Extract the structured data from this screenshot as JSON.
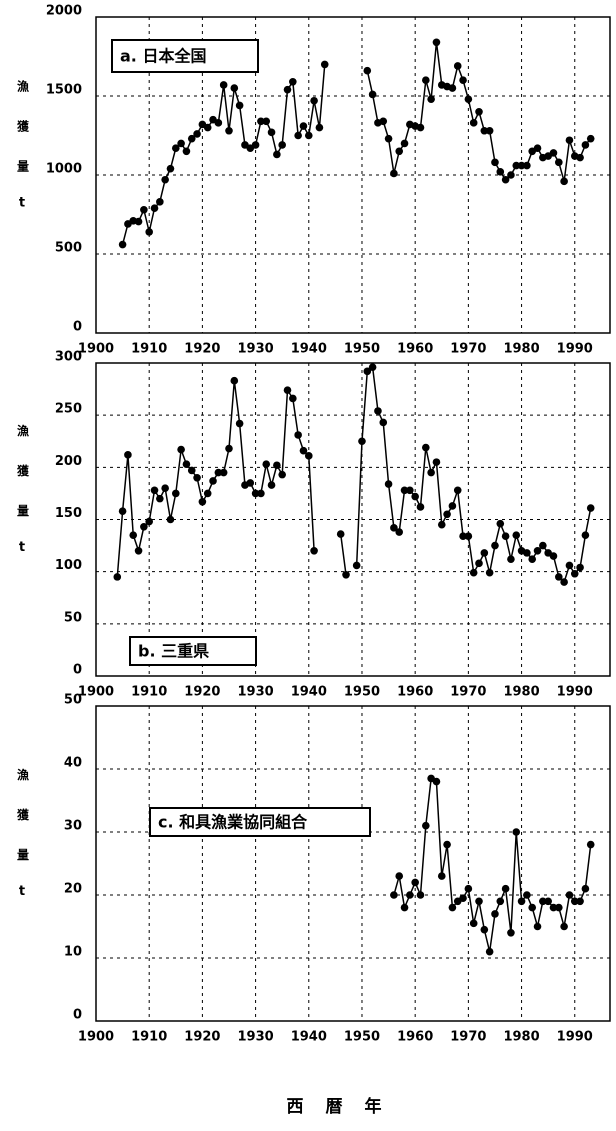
{
  "chart_data": [
    {
      "type": "line",
      "label": "a. 日本全国",
      "y_label": "漁獲量",
      "y_unit": "t",
      "color": "#000000",
      "x": [
        1905,
        1906,
        1907,
        1908,
        1909,
        1910,
        1911,
        1912,
        1913,
        1914,
        1915,
        1916,
        1917,
        1918,
        1919,
        1920,
        1921,
        1922,
        1923,
        1924,
        1925,
        1926,
        1927,
        1928,
        1929,
        1930,
        1931,
        1932,
        1933,
        1934,
        1935,
        1936,
        1937,
        1938,
        1939,
        1940,
        1941,
        1942,
        1943,
        1944,
        1945,
        1946,
        1947,
        1948,
        1949,
        1950,
        1951,
        1952,
        1953,
        1954,
        1955,
        1956,
        1957,
        1958,
        1959,
        1960,
        1961,
        1962,
        1963,
        1964,
        1965,
        1966,
        1967,
        1968,
        1969,
        1970,
        1971,
        1972,
        1973,
        1974,
        1975,
        1976,
        1977,
        1978,
        1979,
        1980,
        1981,
        1982,
        1983,
        1984,
        1985,
        1986,
        1987,
        1988,
        1989,
        1990,
        1991,
        1992,
        1993
      ],
      "values": [
        560,
        690,
        710,
        705,
        780,
        640,
        790,
        830,
        970,
        1040,
        1170,
        1200,
        1150,
        1230,
        1260,
        1320,
        1300,
        1350,
        1330,
        1570,
        1280,
        1550,
        1440,
        1190,
        1170,
        1190,
        1340,
        1340,
        1270,
        1130,
        1190,
        1540,
        1590,
        1250,
        1310,
        1250,
        1470,
        1300,
        1700,
        null,
        null,
        null,
        null,
        null,
        null,
        null,
        1660,
        1510,
        1330,
        1340,
        1230,
        1010,
        1150,
        1200,
        1320,
        1310,
        1300,
        1600,
        1480,
        1840,
        1570,
        1560,
        1550,
        1690,
        1600,
        1480,
        1330,
        1400,
        1280,
        1280,
        1080,
        1020,
        970,
        1000,
        1060,
        1060,
        1060,
        1150,
        1170,
        1110,
        1120,
        1140,
        1080,
        960,
        1220,
        1120,
        1110,
        1190,
        1230
      ],
      "xlim": [
        1900,
        1997
      ],
      "xticks": [
        1900,
        1910,
        1920,
        1930,
        1940,
        1950,
        1960,
        1970,
        1980,
        1990
      ],
      "ylim": [
        0,
        2000
      ],
      "yticks": [
        0,
        500,
        1000,
        1500,
        2000
      ],
      "grid": true
    },
    {
      "type": "line",
      "label": "b. 三重県",
      "y_label": "漁獲量",
      "y_unit": "t",
      "color": "#000000",
      "x": [
        1904,
        1905,
        1906,
        1907,
        1908,
        1909,
        1910,
        1911,
        1912,
        1913,
        1914,
        1915,
        1916,
        1917,
        1918,
        1919,
        1920,
        1921,
        1922,
        1923,
        1924,
        1925,
        1926,
        1927,
        1928,
        1929,
        1930,
        1931,
        1932,
        1933,
        1934,
        1935,
        1936,
        1937,
        1938,
        1939,
        1940,
        1941,
        1942,
        1943,
        1944,
        1945,
        1946,
        1947,
        1948,
        1949,
        1950,
        1951,
        1952,
        1953,
        1954,
        1955,
        1956,
        1957,
        1958,
        1959,
        1960,
        1961,
        1962,
        1963,
        1964,
        1965,
        1966,
        1967,
        1968,
        1969,
        1970,
        1971,
        1972,
        1973,
        1974,
        1975,
        1976,
        1977,
        1978,
        1979,
        1980,
        1981,
        1982,
        1983,
        1984,
        1985,
        1986,
        1987,
        1988,
        1989,
        1990,
        1991,
        1992,
        1993
      ],
      "values": [
        95,
        158,
        212,
        135,
        120,
        143,
        148,
        178,
        170,
        180,
        150,
        175,
        217,
        203,
        197,
        190,
        167,
        175,
        187,
        195,
        195,
        218,
        283,
        242,
        183,
        185,
        175,
        175,
        203,
        183,
        202,
        193,
        274,
        266,
        231,
        216,
        211,
        120,
        null,
        null,
        null,
        null,
        136,
        97,
        null,
        106,
        225,
        292,
        296,
        254,
        243,
        184,
        142,
        138,
        178,
        178,
        172,
        162,
        219,
        195,
        205,
        145,
        155,
        163,
        178,
        134,
        134,
        99,
        108,
        118,
        99,
        125,
        146,
        134,
        112,
        135,
        120,
        118,
        112,
        120,
        125,
        118,
        115,
        95,
        90,
        106,
        98,
        104,
        135,
        161
      ],
      "xlim": [
        1900,
        1997
      ],
      "xticks": [
        1900,
        1910,
        1920,
        1930,
        1940,
        1950,
        1960,
        1970,
        1980,
        1990
      ],
      "ylim": [
        0,
        300
      ],
      "yticks": [
        0,
        50,
        100,
        150,
        200,
        250,
        300
      ],
      "grid": true
    },
    {
      "type": "line",
      "label": "c. 和具漁業協同組合",
      "y_label": "漁獲量",
      "y_unit": "t",
      "xlabel": "西暦年",
      "color": "#000000",
      "x": [
        1956,
        1957,
        1958,
        1959,
        1960,
        1961,
        1962,
        1963,
        1964,
        1965,
        1966,
        1967,
        1968,
        1969,
        1970,
        1971,
        1972,
        1973,
        1974,
        1975,
        1976,
        1977,
        1978,
        1979,
        1980,
        1981,
        1982,
        1983,
        1984,
        1985,
        1986,
        1987,
        1988,
        1989,
        1990,
        1991,
        1992,
        1993
      ],
      "values": [
        20,
        23,
        18,
        20,
        22,
        20,
        31,
        38.5,
        38,
        23,
        28,
        18,
        19,
        19.5,
        21,
        15.5,
        19,
        14.5,
        11,
        17,
        19,
        21,
        14,
        30,
        19,
        20,
        18,
        15,
        19,
        19,
        18,
        18,
        15,
        20,
        19,
        19,
        21,
        28
      ],
      "xlim": [
        1900,
        1997
      ],
      "xticks": [
        1900,
        1910,
        1920,
        1930,
        1940,
        1950,
        1960,
        1970,
        1980,
        1990
      ],
      "ylim": [
        0,
        50
      ],
      "yticks": [
        0,
        10,
        20,
        30,
        40,
        50
      ],
      "grid": true
    }
  ]
}
